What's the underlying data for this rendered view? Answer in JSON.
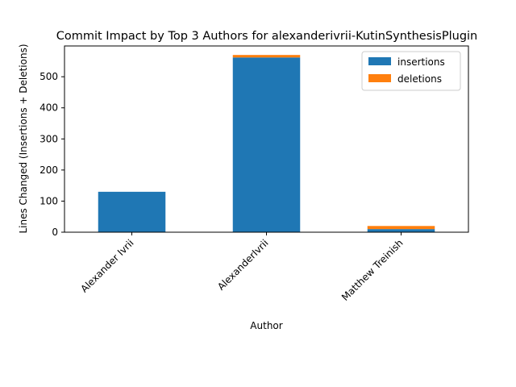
{
  "chart_data": {
    "type": "bar",
    "stacked": true,
    "title": "Commit Impact by Top 3 Authors for alexanderivrii-KutinSynthesisPlugin",
    "xlabel": "Author",
    "ylabel": "Lines Changed (Insertions + Deletions)",
    "categories": [
      "Alexander Ivrii",
      "AlexanderIvrii",
      "Matthew Treinish"
    ],
    "series": [
      {
        "name": "insertions",
        "color": "#1f77b4",
        "values": [
          130,
          562,
          10
        ]
      },
      {
        "name": "deletions",
        "color": "#ff7f0e",
        "values": [
          0,
          8,
          10
        ]
      }
    ],
    "yticks": [
      0,
      100,
      200,
      300,
      400,
      500
    ],
    "ylim": [
      0,
      599
    ],
    "grid": false,
    "legend_position": "top-right"
  }
}
